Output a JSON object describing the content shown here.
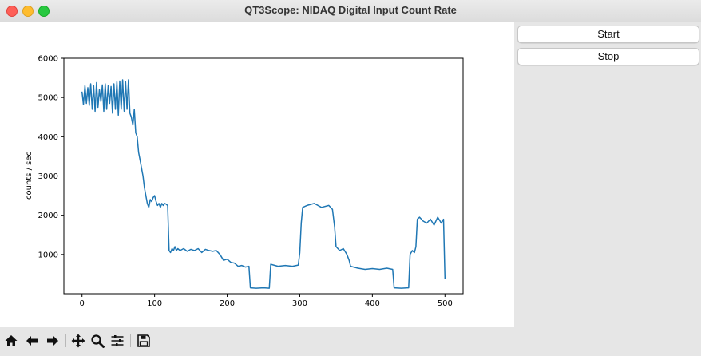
{
  "window": {
    "title": "QT3Scope: NIDAQ Digital Input Count Rate"
  },
  "controls": {
    "start_label": "Start",
    "stop_label": "Stop"
  },
  "toolbar": {
    "icons": [
      "home-icon",
      "back-arrow-icon",
      "forward-arrow-icon",
      "pan-icon",
      "zoom-icon",
      "configure-subplots-icon",
      "save-icon"
    ]
  },
  "chart_data": {
    "type": "line",
    "title": "",
    "xlabel": "",
    "ylabel": "counts / sec",
    "xlim": [
      -25,
      525
    ],
    "ylim": [
      0,
      6000
    ],
    "xticks": [
      0,
      100,
      200,
      300,
      400,
      500
    ],
    "yticks": [
      1000,
      2000,
      3000,
      4000,
      5000,
      6000
    ],
    "color": "#1f77b4",
    "series": [
      {
        "name": "counts",
        "x": [
          0,
          2,
          4,
          6,
          8,
          10,
          12,
          14,
          16,
          18,
          20,
          22,
          24,
          26,
          28,
          30,
          32,
          34,
          36,
          38,
          40,
          42,
          44,
          46,
          48,
          50,
          52,
          54,
          56,
          58,
          60,
          62,
          64,
          66,
          68,
          70,
          72,
          74,
          76,
          78,
          80,
          82,
          84,
          86,
          88,
          90,
          92,
          94,
          96,
          98,
          100,
          102,
          104,
          106,
          108,
          110,
          112,
          114,
          116,
          118,
          120,
          122,
          124,
          126,
          128,
          130,
          132,
          135,
          140,
          145,
          150,
          155,
          160,
          165,
          170,
          175,
          180,
          185,
          190,
          195,
          200,
          205,
          210,
          215,
          220,
          225,
          230,
          232,
          240,
          250,
          258,
          260,
          270,
          280,
          290,
          298,
          300,
          302,
          304,
          310,
          320,
          330,
          340,
          345,
          348,
          350,
          355,
          360,
          365,
          368,
          370,
          380,
          390,
          400,
          410,
          420,
          428,
          430,
          440,
          450,
          452,
          455,
          458,
          460,
          462,
          465,
          470,
          475,
          480,
          485,
          490,
          495,
          498,
          500
        ],
        "values": [
          5150,
          4820,
          5300,
          4850,
          5250,
          4800,
          5350,
          4700,
          5300,
          4650,
          5380,
          4750,
          5200,
          4900,
          5320,
          4650,
          5350,
          4700,
          5300,
          4850,
          5280,
          4600,
          5350,
          4700,
          5400,
          4550,
          5420,
          4700,
          5450,
          4650,
          5400,
          4700,
          5450,
          4600,
          4500,
          4300,
          4700,
          4100,
          4000,
          3600,
          3400,
          3200,
          3000,
          2700,
          2500,
          2300,
          2200,
          2400,
          2350,
          2450,
          2500,
          2350,
          2250,
          2300,
          2200,
          2300,
          2250,
          2300,
          2280,
          2250,
          1100,
          1050,
          1150,
          1100,
          1200,
          1100,
          1150,
          1100,
          1150,
          1080,
          1130,
          1100,
          1150,
          1050,
          1130,
          1100,
          1080,
          1100,
          1000,
          850,
          880,
          800,
          780,
          700,
          720,
          680,
          700,
          150,
          140,
          150,
          140,
          750,
          700,
          720,
          700,
          730,
          1050,
          1800,
          2200,
          2250,
          2300,
          2200,
          2250,
          2150,
          1700,
          1200,
          1100,
          1150,
          1000,
          850,
          700,
          650,
          620,
          640,
          620,
          650,
          620,
          150,
          140,
          150,
          1000,
          1100,
          1050,
          1200,
          1900,
          1950,
          1850,
          1800,
          1900,
          1750,
          1950,
          1800,
          1900,
          380
        ]
      }
    ]
  }
}
